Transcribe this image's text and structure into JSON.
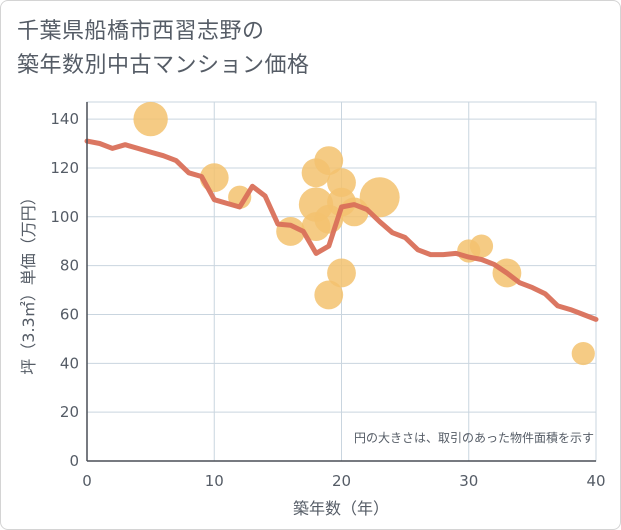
{
  "chart_data": {
    "type": "scatter",
    "title_lines": [
      "千葉県船橋市西習志野の",
      "築年数別中古マンション価格"
    ],
    "xlabel": "築年数（年）",
    "ylabel": "坪（3.3㎡）単価（万円）",
    "xlim": [
      0,
      40
    ],
    "ylim": [
      0,
      147
    ],
    "x_ticks": [
      0,
      10,
      20,
      30,
      40
    ],
    "y_ticks": [
      0,
      20,
      40,
      60,
      80,
      100,
      120,
      140
    ],
    "grid": true,
    "annotation": "円の大きさは、取引のあった物件面積を示す",
    "colors": {
      "bubble": "#f3c26e",
      "line": "#d9705a",
      "grid": "#c9d5df",
      "text": "#555c66"
    },
    "bubbles": [
      {
        "x": 5,
        "y": 140,
        "size": 4
      },
      {
        "x": 10,
        "y": 116,
        "size": 3
      },
      {
        "x": 12,
        "y": 108,
        "size": 2
      },
      {
        "x": 16,
        "y": 94,
        "size": 3
      },
      {
        "x": 18,
        "y": 118,
        "size": 3
      },
      {
        "x": 18,
        "y": 105,
        "size": 4
      },
      {
        "x": 18,
        "y": 96,
        "size": 3
      },
      {
        "x": 19,
        "y": 123,
        "size": 3
      },
      {
        "x": 19,
        "y": 99,
        "size": 3
      },
      {
        "x": 19,
        "y": 68,
        "size": 3
      },
      {
        "x": 20,
        "y": 114,
        "size": 3
      },
      {
        "x": 20,
        "y": 106,
        "size": 3
      },
      {
        "x": 20,
        "y": 77,
        "size": 3
      },
      {
        "x": 21,
        "y": 102,
        "size": 3
      },
      {
        "x": 23,
        "y": 108,
        "size": 5
      },
      {
        "x": 30,
        "y": 86,
        "size": 2
      },
      {
        "x": 31,
        "y": 88,
        "size": 2
      },
      {
        "x": 33,
        "y": 77,
        "size": 3
      },
      {
        "x": 39,
        "y": 44,
        "size": 2
      }
    ],
    "trend_line": [
      [
        0,
        131
      ],
      [
        1,
        130
      ],
      [
        2,
        128
      ],
      [
        3,
        129.5
      ],
      [
        4,
        128
      ],
      [
        5,
        126.5
      ],
      [
        6,
        125
      ],
      [
        7,
        123
      ],
      [
        8,
        118
      ],
      [
        9,
        116.5
      ],
      [
        10,
        107
      ],
      [
        11,
        105.5
      ],
      [
        12,
        104
      ],
      [
        13,
        112.5
      ],
      [
        14,
        108.5
      ],
      [
        15,
        97
      ],
      [
        16,
        96.5
      ],
      [
        17,
        94
      ],
      [
        18,
        85
      ],
      [
        19,
        88
      ],
      [
        20,
        104
      ],
      [
        21,
        105
      ],
      [
        22,
        103
      ],
      [
        23,
        98
      ],
      [
        24,
        93.5
      ],
      [
        25,
        91.5
      ],
      [
        26,
        86.5
      ],
      [
        27,
        84.5
      ],
      [
        28,
        84.5
      ],
      [
        29,
        85
      ],
      [
        30,
        83.5
      ],
      [
        31,
        82.5
      ],
      [
        32,
        80.5
      ],
      [
        33,
        77
      ],
      [
        34,
        73
      ],
      [
        35,
        71
      ],
      [
        36,
        68.5
      ],
      [
        37,
        63.5
      ],
      [
        38,
        62
      ],
      [
        39,
        60
      ],
      [
        40,
        58
      ]
    ]
  }
}
